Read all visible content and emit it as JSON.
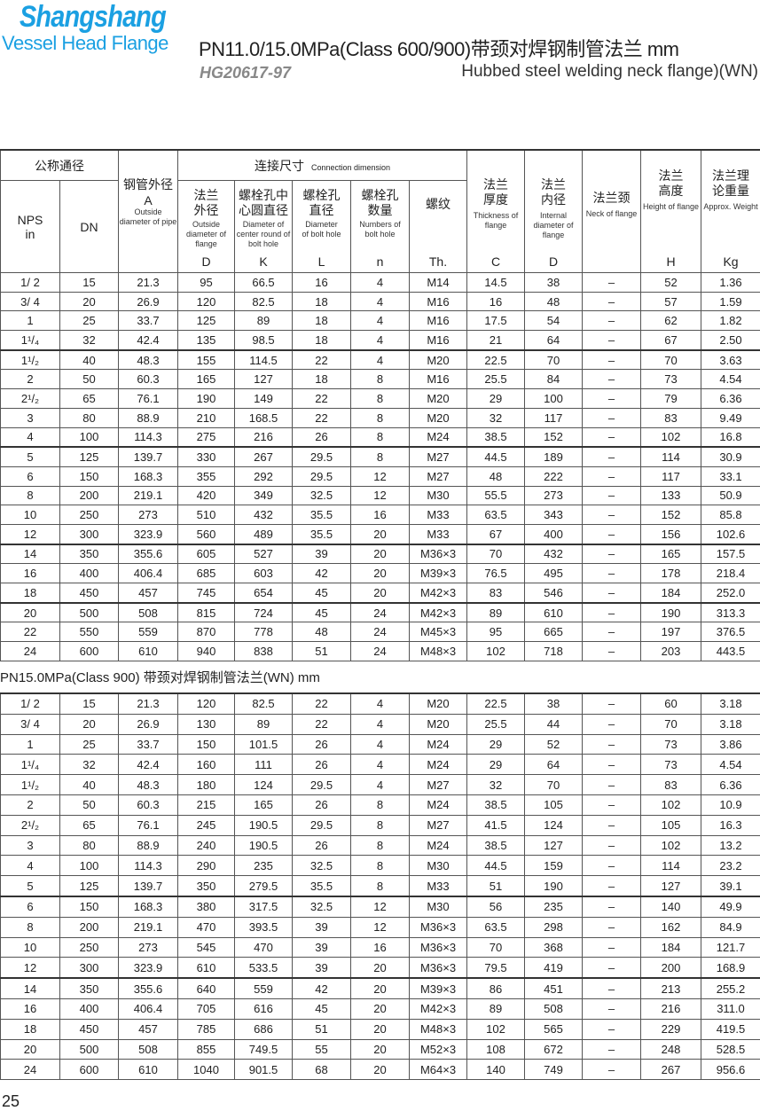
{
  "logo": {
    "brand": "Shangshang",
    "tagline": "Vessel Head Flange"
  },
  "header": {
    "title": "PN11.0/15.0MPa(Class 600/900)带颈对焊钢制管法兰  mm",
    "standard": "HG20617-97",
    "subtitle": "Hubbed steel welding neck flange)(WN)"
  },
  "columns": {
    "nominal": "公称通径",
    "nps": "NPS",
    "nps_unit": "in",
    "dn": "DN",
    "pipe_od_cn": "钢管外径",
    "pipe_od_sym": "A",
    "pipe_od_en": "Outside diameter of pipe",
    "connection_cn": "连接尺寸",
    "connection_en": "Connection dimension",
    "flange_od_cn": "法兰外径",
    "flange_od_en": "Outside diameter of flange",
    "flange_od_sym": "D",
    "bolt_circle_cn": "螺栓孔中心圆直径",
    "bolt_circle_en": "Diameter of center round of bolt hole",
    "bolt_circle_sym": "K",
    "bolt_dia_cn": "螺栓孔直径",
    "bolt_dia_en": "Diameter of bolt hole",
    "bolt_dia_sym": "L",
    "bolt_num_cn": "螺栓孔数量",
    "bolt_num_en": "Numbers of bolt hole",
    "bolt_num_sym": "n",
    "thread_cn": "螺纹",
    "thread_sym": "Th.",
    "thickness_cn": "法兰厚度",
    "thickness_en": "Thickness of flange",
    "thickness_sym": "C",
    "inner_cn": "法兰内径",
    "inner_en": "Internal diameter of flange",
    "inner_sym": "D",
    "neck_cn": "法兰颈",
    "neck_en": "Neck of flange",
    "height_cn": "法兰高度",
    "height_en": "Height of flange",
    "height_sym": "H",
    "weight_cn": "法兰理论重量",
    "weight_en": "Approx. Weight",
    "weight_sym": "Kg"
  },
  "table1": [
    [
      "1/ 2",
      "15",
      "21.3",
      "95",
      "66.5",
      "16",
      "4",
      "M14",
      "14.5",
      "38",
      "–",
      "52",
      "1.36"
    ],
    [
      "3/ 4",
      "20",
      "26.9",
      "120",
      "82.5",
      "18",
      "4",
      "M16",
      "16",
      "48",
      "–",
      "57",
      "1.59"
    ],
    [
      "1",
      "25",
      "33.7",
      "125",
      "89",
      "18",
      "4",
      "M16",
      "17.5",
      "54",
      "–",
      "62",
      "1.82"
    ],
    [
      "1¹/₄",
      "32",
      "42.4",
      "135",
      "98.5",
      "18",
      "4",
      "M16",
      "21",
      "64",
      "–",
      "67",
      "2.50"
    ],
    [
      "1¹/₂",
      "40",
      "48.3",
      "155",
      "114.5",
      "22",
      "4",
      "M20",
      "22.5",
      "70",
      "–",
      "70",
      "3.63"
    ],
    [
      "2",
      "50",
      "60.3",
      "165",
      "127",
      "18",
      "8",
      "M16",
      "25.5",
      "84",
      "–",
      "73",
      "4.54"
    ],
    [
      "2¹/₂",
      "65",
      "76.1",
      "190",
      "149",
      "22",
      "8",
      "M20",
      "29",
      "100",
      "–",
      "79",
      "6.36"
    ],
    [
      "3",
      "80",
      "88.9",
      "210",
      "168.5",
      "22",
      "8",
      "M20",
      "32",
      "117",
      "–",
      "83",
      "9.49"
    ],
    [
      "4",
      "100",
      "114.3",
      "275",
      "216",
      "26",
      "8",
      "M24",
      "38.5",
      "152",
      "–",
      "102",
      "16.8"
    ],
    [
      "5",
      "125",
      "139.7",
      "330",
      "267",
      "29.5",
      "8",
      "M27",
      "44.5",
      "189",
      "–",
      "114",
      "30.9"
    ],
    [
      "6",
      "150",
      "168.3",
      "355",
      "292",
      "29.5",
      "12",
      "M27",
      "48",
      "222",
      "–",
      "117",
      "33.1"
    ],
    [
      "8",
      "200",
      "219.1",
      "420",
      "349",
      "32.5",
      "12",
      "M30",
      "55.5",
      "273",
      "–",
      "133",
      "50.9"
    ],
    [
      "10",
      "250",
      "273",
      "510",
      "432",
      "35.5",
      "16",
      "M33",
      "63.5",
      "343",
      "–",
      "152",
      "85.8"
    ],
    [
      "12",
      "300",
      "323.9",
      "560",
      "489",
      "35.5",
      "20",
      "M33",
      "67",
      "400",
      "–",
      "156",
      "102.6"
    ],
    [
      "14",
      "350",
      "355.6",
      "605",
      "527",
      "39",
      "20",
      "M36×3",
      "70",
      "432",
      "–",
      "165",
      "157.5"
    ],
    [
      "16",
      "400",
      "406.4",
      "685",
      "603",
      "42",
      "20",
      "M39×3",
      "76.5",
      "495",
      "–",
      "178",
      "218.4"
    ],
    [
      "18",
      "450",
      "457",
      "745",
      "654",
      "45",
      "20",
      "M42×3",
      "83",
      "546",
      "–",
      "184",
      "252.0"
    ],
    [
      "20",
      "500",
      "508",
      "815",
      "724",
      "45",
      "24",
      "M42×3",
      "89",
      "610",
      "–",
      "190",
      "313.3"
    ],
    [
      "22",
      "550",
      "559",
      "870",
      "778",
      "48",
      "24",
      "M45×3",
      "95",
      "665",
      "–",
      "197",
      "376.5"
    ],
    [
      "24",
      "600",
      "610",
      "940",
      "838",
      "51",
      "24",
      "M48×3",
      "102",
      "718",
      "–",
      "203",
      "443.5"
    ]
  ],
  "section2_title": "PN15.0MPa(Class 900) 带颈对焊钢制管法兰(WN)  mm",
  "table2": [
    [
      "1/ 2",
      "15",
      "21.3",
      "120",
      "82.5",
      "22",
      "4",
      "M20",
      "22.5",
      "38",
      "–",
      "60",
      "3.18"
    ],
    [
      "3/ 4",
      "20",
      "26.9",
      "130",
      "89",
      "22",
      "4",
      "M20",
      "25.5",
      "44",
      "–",
      "70",
      "3.18"
    ],
    [
      "1",
      "25",
      "33.7",
      "150",
      "101.5",
      "26",
      "4",
      "M24",
      "29",
      "52",
      "–",
      "73",
      "3.86"
    ],
    [
      "1¹/₄",
      "32",
      "42.4",
      "160",
      "111",
      "26",
      "4",
      "M24",
      "29",
      "64",
      "–",
      "73",
      "4.54"
    ],
    [
      "1¹/₂",
      "40",
      "48.3",
      "180",
      "124",
      "29.5",
      "4",
      "M27",
      "32",
      "70",
      "–",
      "83",
      "6.36"
    ],
    [
      "2",
      "50",
      "60.3",
      "215",
      "165",
      "26",
      "8",
      "M24",
      "38.5",
      "105",
      "–",
      "102",
      "10.9"
    ],
    [
      "2¹/₂",
      "65",
      "76.1",
      "245",
      "190.5",
      "29.5",
      "8",
      "M27",
      "41.5",
      "124",
      "–",
      "105",
      "16.3"
    ],
    [
      "3",
      "80",
      "88.9",
      "240",
      "190.5",
      "26",
      "8",
      "M24",
      "38.5",
      "127",
      "–",
      "102",
      "13.2"
    ],
    [
      "4",
      "100",
      "114.3",
      "290",
      "235",
      "32.5",
      "8",
      "M30",
      "44.5",
      "159",
      "–",
      "114",
      "23.2"
    ],
    [
      "5",
      "125",
      "139.7",
      "350",
      "279.5",
      "35.5",
      "8",
      "M33",
      "51",
      "190",
      "–",
      "127",
      "39.1"
    ],
    [
      "6",
      "150",
      "168.3",
      "380",
      "317.5",
      "32.5",
      "12",
      "M30",
      "56",
      "235",
      "–",
      "140",
      "49.9"
    ],
    [
      "8",
      "200",
      "219.1",
      "470",
      "393.5",
      "39",
      "12",
      "M36×3",
      "63.5",
      "298",
      "–",
      "162",
      "84.9"
    ],
    [
      "10",
      "250",
      "273",
      "545",
      "470",
      "39",
      "16",
      "M36×3",
      "70",
      "368",
      "–",
      "184",
      "121.7"
    ],
    [
      "12",
      "300",
      "323.9",
      "610",
      "533.5",
      "39",
      "20",
      "M36×3",
      "79.5",
      "419",
      "–",
      "200",
      "168.9"
    ],
    [
      "14",
      "350",
      "355.6",
      "640",
      "559",
      "42",
      "20",
      "M39×3",
      "86",
      "451",
      "–",
      "213",
      "255.2"
    ],
    [
      "16",
      "400",
      "406.4",
      "705",
      "616",
      "45",
      "20",
      "M42×3",
      "89",
      "508",
      "–",
      "216",
      "311.0"
    ],
    [
      "18",
      "450",
      "457",
      "785",
      "686",
      "51",
      "20",
      "M48×3",
      "102",
      "565",
      "–",
      "229",
      "419.5"
    ],
    [
      "20",
      "500",
      "508",
      "855",
      "749.5",
      "55",
      "20",
      "M52×3",
      "108",
      "672",
      "–",
      "248",
      "528.5"
    ],
    [
      "24",
      "600",
      "610",
      "1040",
      "901.5",
      "68",
      "20",
      "M64×3",
      "140",
      "749",
      "–",
      "267",
      "956.6"
    ]
  ],
  "page_number": "25",
  "colors": {
    "brand": "#1ba0e2",
    "standard": "#888888"
  }
}
